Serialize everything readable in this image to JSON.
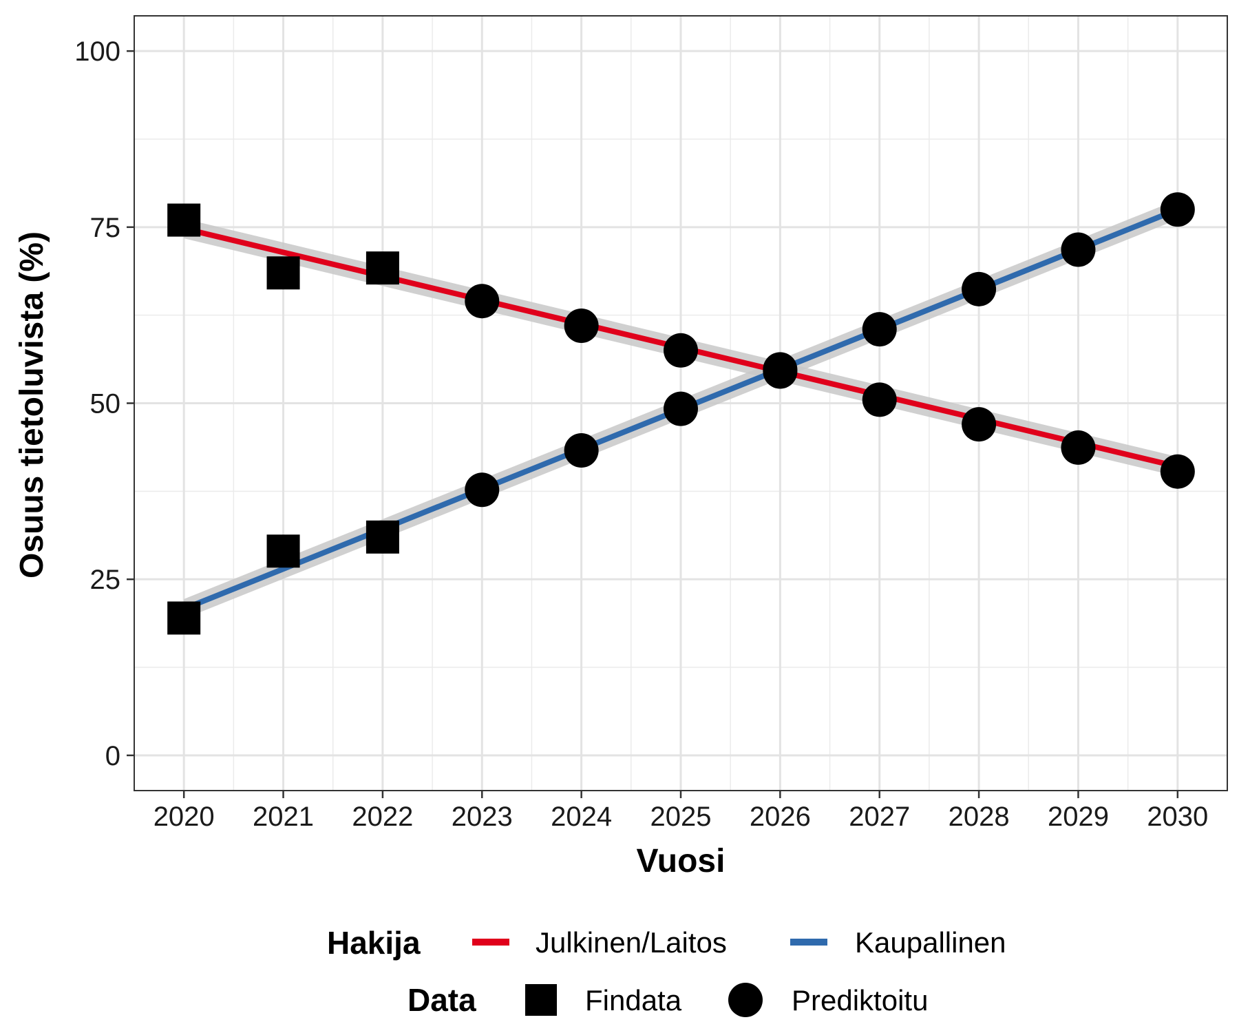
{
  "chart_data": {
    "type": "line",
    "xlabel": "Vuosi",
    "ylabel": "Osuus tietoluvista (%)",
    "xlim": [
      2019.5,
      2030.5
    ],
    "ylim": [
      -5,
      105
    ],
    "x_ticks": [
      2020,
      2021,
      2022,
      2023,
      2024,
      2025,
      2026,
      2027,
      2028,
      2029,
      2030
    ],
    "y_ticks": [
      0,
      25,
      50,
      75,
      100
    ],
    "grid": true,
    "legend_placement": "bottom",
    "series": [
      {
        "name": "Julkinen/Laitos",
        "color": "#e0001b",
        "trend": [
          [
            2020,
            74.8
          ],
          [
            2030,
            41.0
          ]
        ],
        "findata": [
          [
            2020,
            76.0
          ],
          [
            2021,
            68.5
          ],
          [
            2022,
            69.2
          ]
        ],
        "prediktoitu": [
          [
            2023,
            64.5
          ],
          [
            2024,
            61.0
          ],
          [
            2025,
            57.5
          ],
          [
            2026,
            54.5
          ],
          [
            2027,
            50.5
          ],
          [
            2028,
            47.0
          ],
          [
            2029,
            43.7
          ],
          [
            2030,
            40.3
          ]
        ]
      },
      {
        "name": "Kaupallinen",
        "color": "#2f6aad",
        "trend": [
          [
            2020,
            20.8
          ],
          [
            2030,
            77.5
          ]
        ],
        "findata": [
          [
            2020,
            19.5
          ],
          [
            2021,
            29.0
          ],
          [
            2022,
            31.0
          ]
        ],
        "prediktoitu": [
          [
            2023,
            37.7
          ],
          [
            2024,
            43.3
          ],
          [
            2025,
            49.2
          ],
          [
            2026,
            54.8
          ],
          [
            2027,
            60.5
          ],
          [
            2028,
            66.2
          ],
          [
            2029,
            71.8
          ],
          [
            2030,
            77.5
          ]
        ]
      }
    ]
  },
  "legend": {
    "hakija_title": "Hakija",
    "hakija_items": [
      {
        "label": "Julkinen/Laitos",
        "color": "#e0001b"
      },
      {
        "label": "Kaupallinen",
        "color": "#2f6aad"
      }
    ],
    "data_title": "Data",
    "data_items": [
      {
        "label": "Findata",
        "shape": "square"
      },
      {
        "label": "Prediktoitu",
        "shape": "circle"
      }
    ]
  }
}
